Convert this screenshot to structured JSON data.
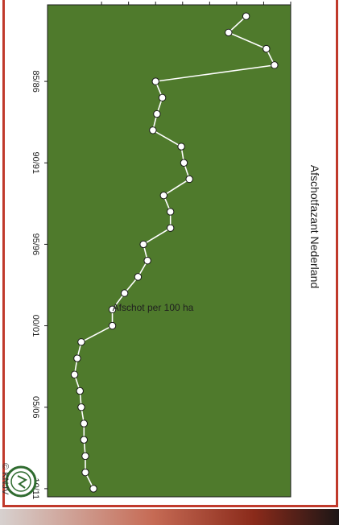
{
  "chart_data": {
    "type": "line",
    "title": "Afschotfazant Nederland",
    "ylabel": "Afschot per 100 ha",
    "xlabel": "",
    "x_tick_labels": [
      "85/86",
      "90/91",
      "95/96",
      "00/01",
      "05/06",
      "10/11"
    ],
    "x_tick_years": [
      1985,
      1990,
      1995,
      2000,
      2005,
      2010
    ],
    "yticks": [
      4,
      6,
      8,
      10,
      12,
      14,
      16,
      18
    ],
    "ylim": [
      0,
      18
    ],
    "grid": false,
    "series": [
      {
        "x": [
          1981,
          1982,
          1983,
          1984,
          1985,
          1986,
          1987,
          1988,
          1989,
          1990,
          1991,
          1992,
          1993,
          1994,
          1995,
          1996,
          1997,
          1998,
          1999,
          2000,
          2001,
          2002,
          2003,
          2004,
          2005,
          2006,
          2007,
          2008,
          2009,
          2010
        ],
        "values": [
          14.7,
          13.4,
          16.2,
          16.8,
          8.0,
          8.5,
          8.1,
          7.8,
          9.9,
          10.1,
          10.5,
          8.6,
          9.1,
          9.1,
          7.1,
          7.4,
          6.7,
          5.7,
          4.8,
          4.8,
          2.5,
          2.2,
          2.0,
          2.4,
          2.5,
          2.7,
          2.7,
          2.8,
          2.8,
          3.4
        ]
      }
    ],
    "colors": {
      "plot_background": "#4f7a2c",
      "line": "#ffffff",
      "marker_fill": "#ffffff",
      "frame": "#c0392b"
    }
  },
  "footer": {
    "copyright": "© KNJV",
    "logo": "knjv-logo-emblem"
  }
}
